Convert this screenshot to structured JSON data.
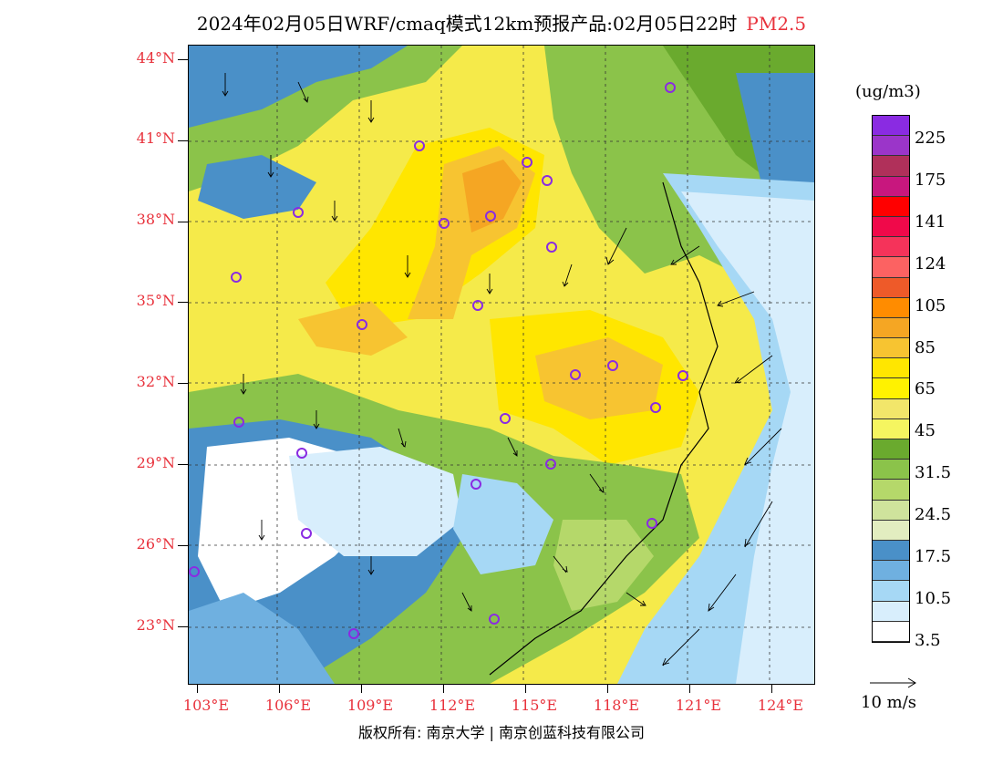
{
  "title": {
    "text": "2024年02月05日WRF/cmaq模式12km预报产品:02月05日22时",
    "pollutant": "PM2.5"
  },
  "map": {
    "lat_labels": [
      "44°N",
      "41°N",
      "38°N",
      "35°N",
      "32°N",
      "29°N",
      "26°N",
      "23°N"
    ],
    "lon_labels": [
      "103°E",
      "106°E",
      "109°E",
      "112°E",
      "115°E",
      "118°E",
      "121°E",
      "124°E"
    ],
    "colors": {
      "land_high": "#ffe600",
      "hotspot": "#f5a032",
      "clean_coast": "#d8eefc",
      "water_blue": "#4a90c8"
    }
  },
  "colorbar": {
    "unit": "(ug/m3)",
    "colors": [
      "#8a2be2",
      "#9b35c9",
      "#b0305a",
      "#c8177e",
      "#ff0000",
      "#f0094a",
      "#f5335a",
      "#fc6262",
      "#ee5a29",
      "#ff8c00",
      "#f5a623",
      "#f7c431",
      "#ffe600",
      "#fff200",
      "#f2e66a",
      "#f5f560",
      "#6aaa2e",
      "#8bc34a",
      "#b5d86a",
      "#cfe39c",
      "#e2edc0",
      "#4a90c8",
      "#6fb0e0",
      "#a6d8f5",
      "#d8eefc",
      "#ffffff"
    ],
    "labels": [
      "225",
      "175",
      "141",
      "124",
      "105",
      "85",
      "65",
      "45",
      "31.5",
      "24.5",
      "17.5",
      "10.5",
      "3.5"
    ]
  },
  "wind_legend": "10 m/s",
  "copyright": "版权所有: 南京大学 | 南京创蓝科技有限公司"
}
